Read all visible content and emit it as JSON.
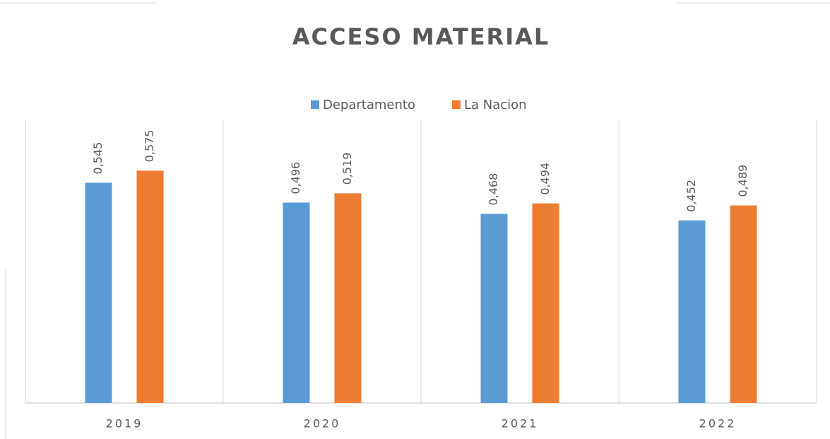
{
  "chart_data": {
    "type": "bar",
    "title": "ACCESO MATERIAL",
    "categories": [
      "2019",
      "2020",
      "2021",
      "2022"
    ],
    "series": [
      {
        "name": "Departamento",
        "color": "#5b9bd5",
        "values": [
          0.545,
          0.496,
          0.468,
          0.452
        ],
        "value_labels": [
          "0,545",
          "0,496",
          "0,468",
          "0,452"
        ]
      },
      {
        "name": "La Nacion",
        "color": "#ed7d31",
        "values": [
          0.575,
          0.519,
          0.494,
          0.489
        ],
        "value_labels": [
          "0,575",
          "0,519",
          "0,494",
          "0,489"
        ]
      }
    ],
    "ylim": [
      0,
      0.7
    ],
    "legend": "top"
  }
}
